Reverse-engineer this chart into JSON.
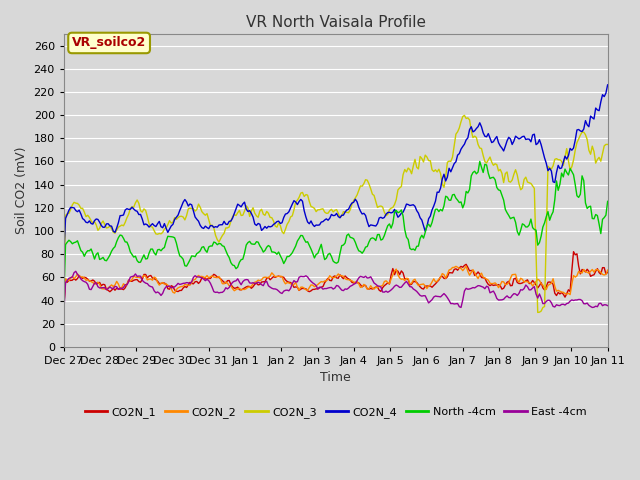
{
  "title": "VR North Vaisala Profile",
  "xlabel": "Time",
  "ylabel": "Soil CO2 (mV)",
  "ylim": [
    0,
    270
  ],
  "yticks": [
    0,
    20,
    40,
    60,
    80,
    100,
    120,
    140,
    160,
    180,
    200,
    220,
    240,
    260
  ],
  "bg_color": "#d8d8d8",
  "grid_color": "#ffffff",
  "title_fontsize": 11,
  "label_fontsize": 9,
  "tick_fontsize": 8,
  "legend_label": "VR_soilco2",
  "legend_text_color": "#aa0000",
  "legend_box_facecolor": "#ffffcc",
  "legend_box_edgecolor": "#999900",
  "series_colors": {
    "CO2N_1": "#cc0000",
    "CO2N_2": "#ff8800",
    "CO2N_3": "#cccc00",
    "CO2N_4": "#0000cc",
    "North_4cm": "#00cc00",
    "East_4cm": "#990099"
  },
  "x_tick_labels": [
    "Dec 27",
    "Dec 28",
    "Dec 29",
    "Dec 30",
    "Dec 31",
    "Jan 1",
    "Jan 2",
    "Jan 3",
    "Jan 4",
    "Jan 5",
    "Jan 6",
    "Jan 7",
    "Jan 8",
    "Jan 9",
    "Jan 10",
    "Jan 11"
  ],
  "n_points": 320
}
